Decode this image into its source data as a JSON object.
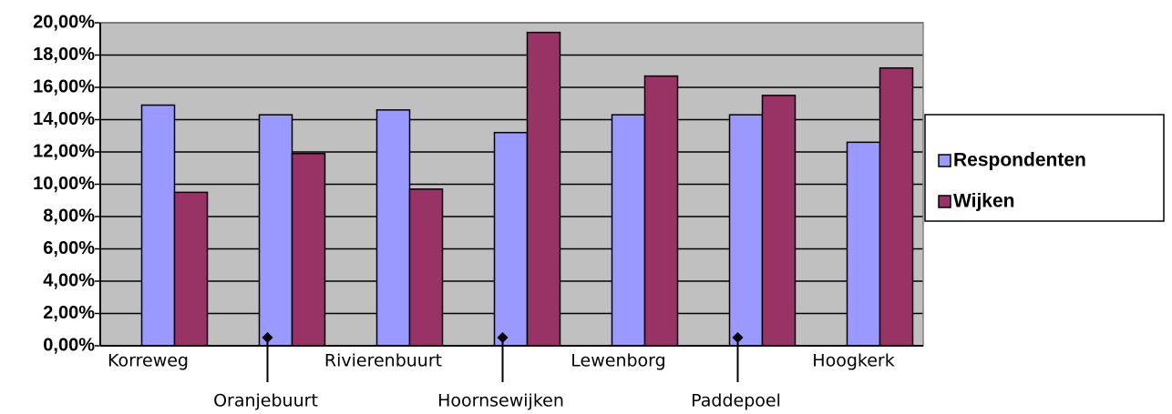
{
  "chart_data": {
    "type": "bar",
    "categories": [
      "Korreweg",
      "Oranjebuurt",
      "Rivierenbuurt",
      "Hoornsewijken",
      "Lewenborg",
      "Paddepoel",
      "Hoogkerk"
    ],
    "series": [
      {
        "name": "Respondenten",
        "color": "#9999ff",
        "values": [
          14.9,
          14.3,
          14.6,
          13.2,
          14.3,
          14.3,
          12.6
        ]
      },
      {
        "name": "Wijken",
        "color": "#993366",
        "values": [
          9.5,
          11.9,
          9.7,
          19.4,
          16.7,
          15.5,
          17.2
        ]
      }
    ],
    "ylim": [
      0,
      20
    ],
    "yticks": [
      {
        "value": 0,
        "label": "0,00%"
      },
      {
        "value": 2,
        "label": "2,00%"
      },
      {
        "value": 4,
        "label": "4,00%"
      },
      {
        "value": 6,
        "label": "6,00%"
      },
      {
        "value": 8,
        "label": "8,00%"
      },
      {
        "value": 10,
        "label": "10,00%"
      },
      {
        "value": 12,
        "label": "12,00%"
      },
      {
        "value": 14,
        "label": "14,00%"
      },
      {
        "value": 16,
        "label": "16,00%"
      },
      {
        "value": 18,
        "label": "18,00%"
      },
      {
        "value": 20,
        "label": "20,00%"
      }
    ],
    "grid": true,
    "legend": "right"
  }
}
